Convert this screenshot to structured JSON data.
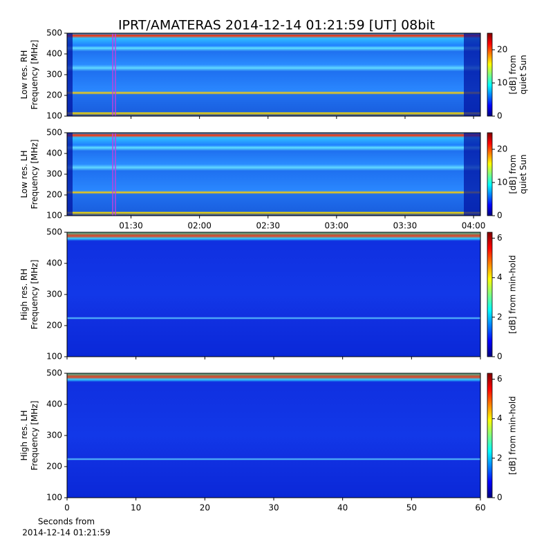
{
  "chart_data": {
    "title": "IPRT/AMATERAS 2014-12-14 01:21:59 [UT]   08bit",
    "panels": [
      {
        "type": "heatmap",
        "ylabel": [
          "Low res. RH",
          "Frequency [MHz]"
        ],
        "ylim": [
          100,
          500
        ],
        "yticks": [
          100,
          200,
          300,
          400,
          500
        ],
        "xlim": [
          "01:02",
          "04:03"
        ],
        "xticks": [
          "01:30",
          "02:00",
          "02:30",
          "03:00",
          "03:30",
          "04:00"
        ],
        "xticklabels": false,
        "colormap": "jet",
        "clim": [
          0,
          25
        ],
        "cticks": [
          0,
          10,
          20
        ],
        "clabel": [
          "[dB] from",
          "quiet Sun"
        ]
      },
      {
        "type": "heatmap",
        "ylabel": [
          "Low res. LH",
          "Frequency [MHz]"
        ],
        "ylim": [
          100,
          500
        ],
        "yticks": [
          100,
          200,
          300,
          400,
          500
        ],
        "xlim": [
          "01:02",
          "04:03"
        ],
        "xticks": [
          "01:30",
          "02:00",
          "02:30",
          "03:00",
          "03:30",
          "04:00"
        ],
        "xticklabels": true,
        "colormap": "jet",
        "clim": [
          0,
          25
        ],
        "cticks": [
          0,
          10,
          20
        ],
        "clabel": [
          "[dB] from",
          "quiet Sun"
        ]
      },
      {
        "type": "heatmap",
        "ylabel": [
          "High res. RH",
          "Frequency [MHz]"
        ],
        "ylim": [
          100,
          500
        ],
        "yticks": [
          100,
          200,
          300,
          400,
          500
        ],
        "xlim": [
          0,
          60
        ],
        "xticks": [
          0,
          10,
          20,
          30,
          40,
          50,
          60
        ],
        "xticklabels": false,
        "colormap": "jet",
        "clim": [
          0,
          6.3
        ],
        "cticks": [
          0,
          2,
          4,
          6
        ],
        "clabel": [
          "[dB] from min-hold"
        ]
      },
      {
        "type": "heatmap",
        "ylabel": [
          "High res. LH",
          "Frequency [MHz]"
        ],
        "ylim": [
          100,
          500
        ],
        "yticks": [
          100,
          200,
          300,
          400,
          500
        ],
        "xlim": [
          0,
          60
        ],
        "xticks": [
          0,
          10,
          20,
          30,
          40,
          50,
          60
        ],
        "xticklabels": true,
        "xlabel": [
          "Seconds from",
          "2014-12-14 01:21:59"
        ],
        "colormap": "jet",
        "clim": [
          0,
          6.3
        ],
        "cticks": [
          0,
          2,
          4,
          6
        ],
        "clabel": [
          "[dB] from min-hold"
        ]
      }
    ]
  }
}
